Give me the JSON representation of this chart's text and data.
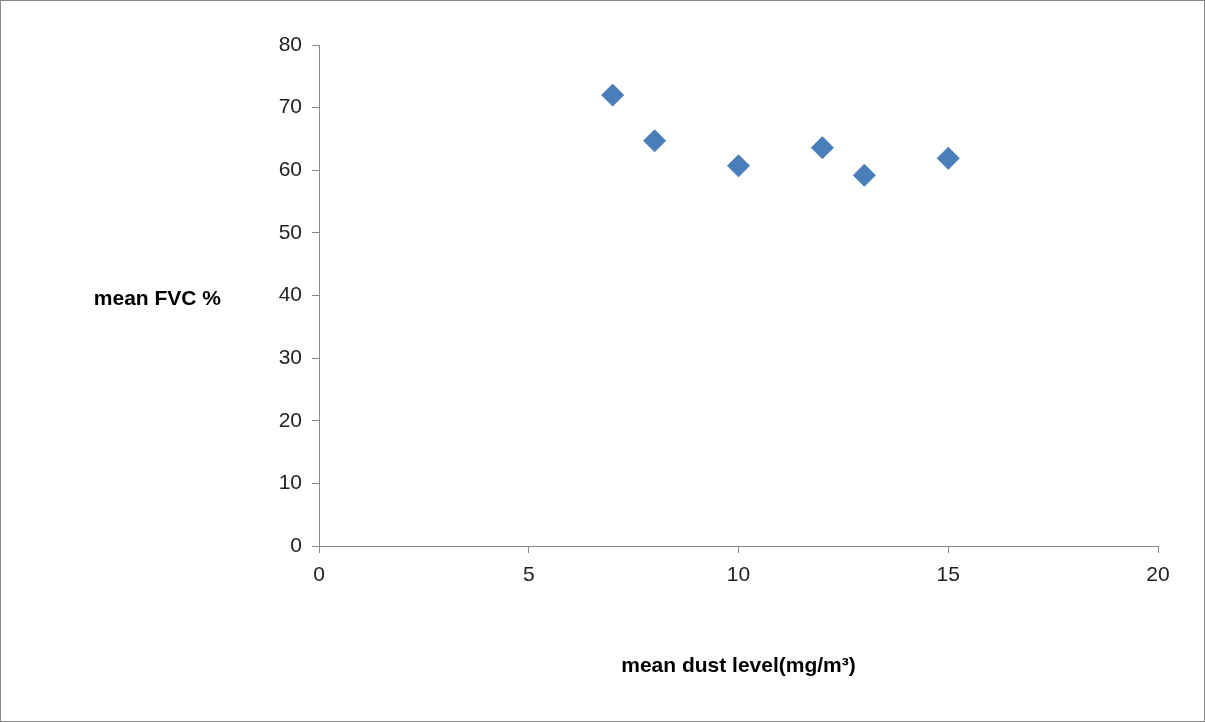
{
  "chart_data": {
    "type": "scatter",
    "xlabel": "mean dust level(mg/m³)",
    "ylabel": "mean FVC %",
    "x": [
      7,
      8,
      10,
      12,
      13,
      15
    ],
    "series": [
      {
        "color": "#4a7ebb",
        "values": [
          72.0,
          64.7,
          60.7,
          63.6,
          59.2,
          61.9
        ]
      }
    ],
    "xlim": [
      0,
      20
    ],
    "xticks": [
      0,
      5,
      10,
      15,
      20
    ],
    "ylim": [
      0,
      80
    ],
    "yticks": [
      0,
      10,
      20,
      30,
      40,
      50,
      60,
      70,
      80
    ],
    "marker": "diamond",
    "grid": false,
    "legend": false
  }
}
